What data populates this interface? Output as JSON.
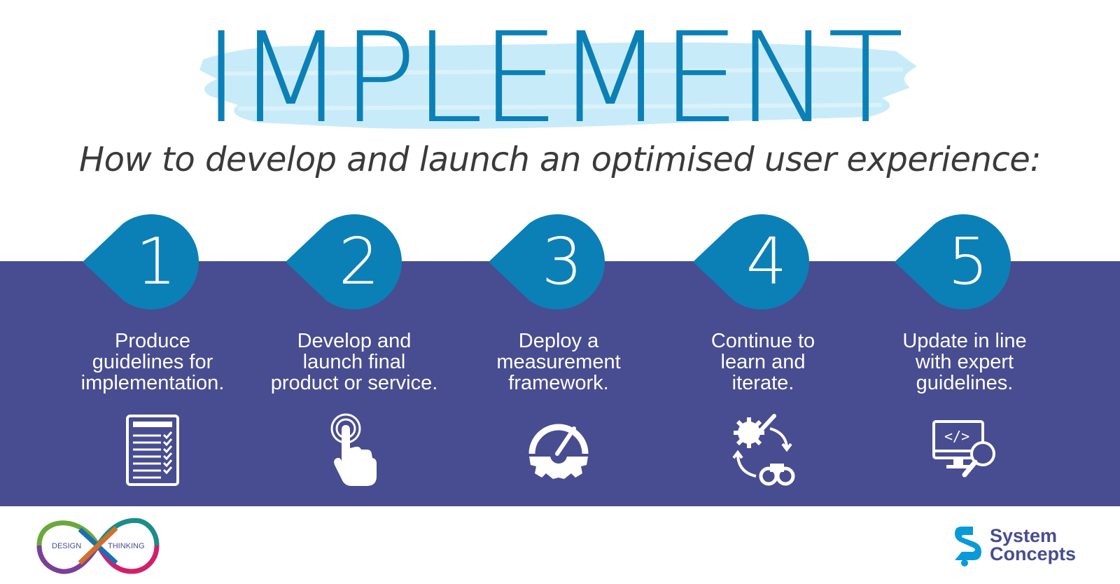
{
  "header": {
    "title": "IMPLEMENT",
    "subtitle": "How to develop and launch an optimised user experience:"
  },
  "colors": {
    "title": "#0a80b6",
    "brush": "#c8ebfa",
    "band": "#484c90",
    "drop": "#0a80b6",
    "text_light": "#ffffff"
  },
  "steps": [
    {
      "number": "1",
      "lines": [
        "Produce",
        "guidelines for",
        "implementation."
      ],
      "icon": "checklist-icon"
    },
    {
      "number": "2",
      "lines": [
        "Develop and",
        "launch final",
        "product or service."
      ],
      "icon": "touch-hand-icon"
    },
    {
      "number": "3",
      "lines": [
        "Deploy a",
        "measurement",
        "framework."
      ],
      "icon": "gauge-gear-icon"
    },
    {
      "number": "4",
      "lines": [
        "Continue to",
        "learn and",
        "iterate."
      ],
      "icon": "cycle-binoculars-icon"
    },
    {
      "number": "5",
      "lines": [
        "Update in line",
        "with expert",
        "guidelines."
      ],
      "icon": "code-monitor-magnifier-icon"
    }
  ],
  "footer": {
    "design_thinking_logo": {
      "left_word": "DESIGN",
      "right_word": "THINKING"
    },
    "company_logo": {
      "line1": "System",
      "line2": "Concepts"
    }
  }
}
